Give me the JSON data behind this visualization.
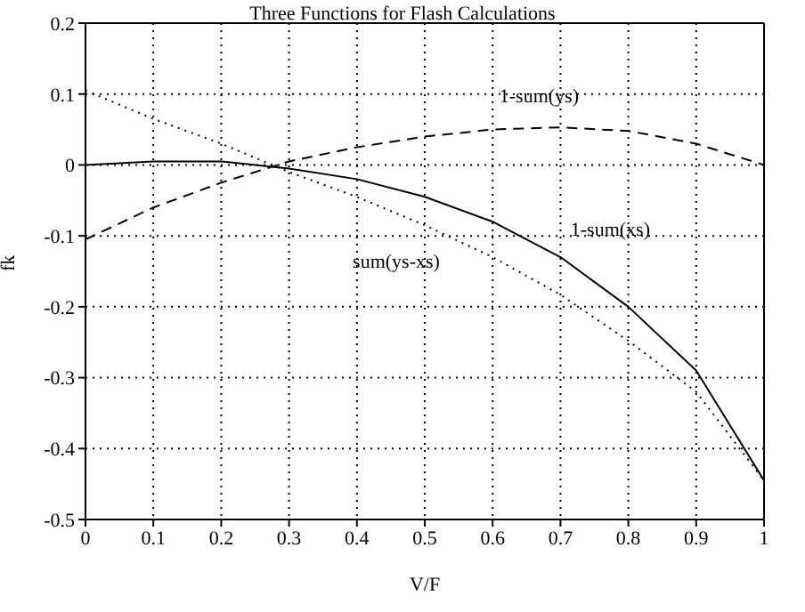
{
  "chart_data": {
    "type": "line",
    "title": "Three Functions for Flash Calculations",
    "xlabel": "V/F",
    "ylabel": "fk",
    "x": [
      0,
      0.1,
      0.2,
      0.3,
      0.4,
      0.5,
      0.6,
      0.7,
      0.8,
      0.9,
      1.0
    ],
    "series": [
      {
        "name": "1-sum(xs)",
        "color": "#000000",
        "line_style": "solid",
        "values": [
          0,
          0.005,
          0.005,
          -0.005,
          -0.02,
          -0.045,
          -0.08,
          -0.13,
          -0.2,
          -0.29,
          -0.445
        ]
      },
      {
        "name": "1-sum(ys)",
        "color": "#000000",
        "line_style": "dashed",
        "values": [
          -0.105,
          -0.06,
          -0.025,
          0.005,
          0.025,
          0.04,
          0.05,
          0.053,
          0.048,
          0.03,
          0
        ]
      },
      {
        "name": "sum(ys-xs)",
        "color": "#000000",
        "line_style": "dotted",
        "values": [
          0.105,
          0.065,
          0.03,
          -0.01,
          -0.045,
          -0.085,
          -0.13,
          -0.183,
          -0.248,
          -0.32,
          -0.445
        ]
      }
    ],
    "xlim": [
      0,
      1
    ],
    "xticks": [
      0,
      0.1,
      0.2,
      0.3,
      0.4,
      0.5,
      0.6,
      0.7,
      0.8,
      0.9,
      1
    ],
    "ylim": [
      -0.5,
      0.2
    ],
    "yticks": [
      -0.5,
      -0.4,
      -0.3,
      -0.2,
      -0.1,
      0,
      0.1,
      0.2
    ],
    "grid": true,
    "legend": false,
    "marker": "none"
  }
}
